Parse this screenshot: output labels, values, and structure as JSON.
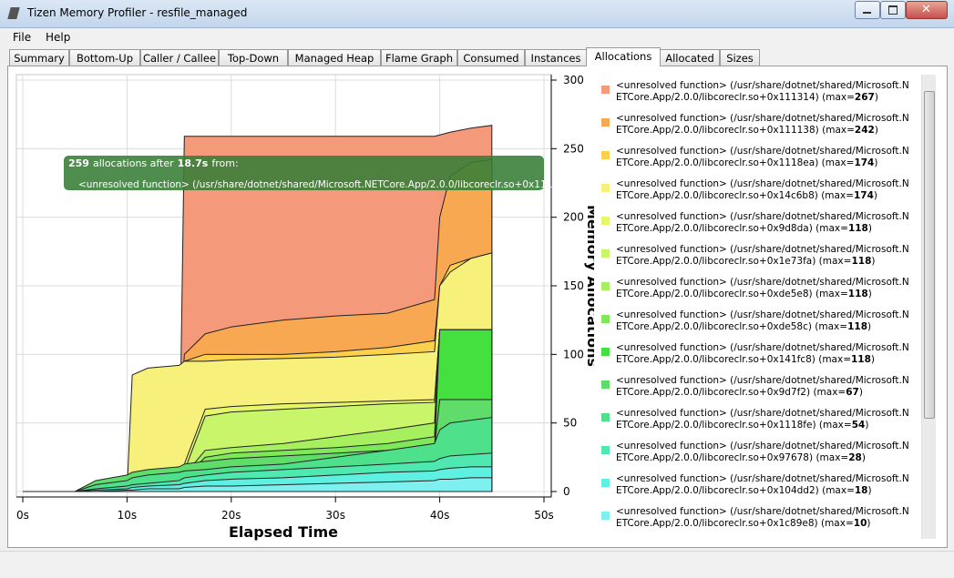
{
  "window": {
    "title": "Tizen Memory Profiler - resfile_managed"
  },
  "menu": [
    "File",
    "Help"
  ],
  "tabs": [
    "Summary",
    "Bottom-Up",
    "Caller / Callee",
    "Top-Down",
    "Managed Heap",
    "Flame Graph",
    "Consumed",
    "Instances",
    "Allocations",
    "Allocated",
    "Sizes"
  ],
  "active_tab": 8,
  "chart_data": {
    "type": "area",
    "x_label": "Elapsed Time",
    "y_label": "Memory Allocations",
    "x": [
      0,
      5,
      7,
      10,
      10.5,
      12,
      15,
      15.5,
      17.5,
      20,
      25,
      30,
      35,
      39.5,
      40,
      41,
      43,
      45
    ],
    "xlim": [
      0,
      50
    ],
    "xticks": [
      {
        "value": 0,
        "label": "0s"
      },
      {
        "value": 10,
        "label": "10s"
      },
      {
        "value": 20,
        "label": "20s"
      },
      {
        "value": 30,
        "label": "30s"
      },
      {
        "value": 40,
        "label": "40s"
      },
      {
        "value": 50,
        "label": "50s"
      }
    ],
    "ylim": [
      0,
      300
    ],
    "yticks": [
      0,
      50,
      100,
      150,
      200,
      250,
      300
    ],
    "grid": true,
    "max_prefix": "(max=",
    "max_suffix": ")",
    "series": [
      {
        "name": "<unresolved function> (/usr/share/dotnet/shared/Microsoft.NETCore.App/2.0.0/libcoreclr.so+0x111314)",
        "max": 267,
        "color": "#f4997a",
        "values": [
          0,
          0,
          0,
          0,
          0,
          0,
          0,
          259,
          259,
          259,
          259,
          259,
          259,
          259,
          260,
          262,
          265,
          267
        ]
      },
      {
        "name": "<unresolved function> (/usr/share/dotnet/shared/Microsoft.NETCore.App/2.0.0/libcoreclr.so+0x111138)",
        "max": 242,
        "color": "#f7a850",
        "values": [
          0,
          0,
          0,
          0,
          2,
          20,
          25,
          100,
          115,
          120,
          125,
          128,
          130,
          140,
          200,
          230,
          240,
          242
        ]
      },
      {
        "name": "<unresolved function> (/usr/share/dotnet/shared/Microsoft.NETCore.App/2.0.0/libcoreclr.so+0x1118ea)",
        "max": 174,
        "color": "#fcd04a",
        "values": [
          0,
          0,
          0,
          0,
          2,
          10,
          20,
          95,
          100,
          100,
          100,
          102,
          105,
          110,
          150,
          165,
          170,
          174
        ]
      },
      {
        "name": "<unresolved function> (/usr/share/dotnet/shared/Microsoft.NETCore.App/2.0.0/libcoreclr.so+0x14c6b8)",
        "max": 174,
        "color": "#f7f07a",
        "values": [
          0,
          0,
          0,
          0,
          85,
          90,
          92,
          95,
          95,
          96,
          97,
          98,
          100,
          102,
          150,
          160,
          170,
          174
        ]
      },
      {
        "name": "<unresolved function> (/usr/share/dotnet/shared/Microsoft.NETCore.App/2.0.0/libcoreclr.so+0x9d8da)",
        "max": 118,
        "color": "#e6f56a",
        "values": [
          0,
          0,
          0,
          0,
          0,
          5,
          10,
          20,
          60,
          62,
          64,
          65,
          66,
          67,
          118,
          118,
          118,
          118
        ]
      },
      {
        "name": "<unresolved function> (/usr/share/dotnet/shared/Microsoft.NETCore.App/2.0.0/libcoreclr.so+0x1e73fa)",
        "max": 118,
        "color": "#c8f56a",
        "values": [
          0,
          0,
          0,
          0,
          0,
          5,
          8,
          15,
          55,
          58,
          60,
          62,
          64,
          65,
          118,
          118,
          118,
          118
        ]
      },
      {
        "name": "<unresolved function> (/usr/share/dotnet/shared/Microsoft.NETCore.App/2.0.0/libcoreclr.so+0xde5e8)",
        "max": 118,
        "color": "#a6f060",
        "values": [
          0,
          0,
          0,
          0,
          0,
          3,
          5,
          12,
          30,
          32,
          35,
          40,
          45,
          50,
          118,
          118,
          118,
          118
        ]
      },
      {
        "name": "<unresolved function> (/usr/share/dotnet/shared/Microsoft.NETCore.App/2.0.0/libcoreclr.so+0xde58c)",
        "max": 118,
        "color": "#7ee85a",
        "values": [
          0,
          0,
          0,
          0,
          0,
          2,
          4,
          10,
          25,
          28,
          30,
          32,
          35,
          40,
          118,
          118,
          118,
          118
        ]
      },
      {
        "name": "<unresolved function> (/usr/share/dotnet/shared/Microsoft.NETCore.App/2.0.0/libcoreclr.so+0x141fc8)",
        "max": 118,
        "color": "#44e040",
        "values": [
          0,
          0,
          0,
          0,
          0,
          2,
          3,
          8,
          20,
          22,
          24,
          26,
          28,
          30,
          118,
          118,
          118,
          118
        ]
      },
      {
        "name": "<unresolved function> (/usr/share/dotnet/shared/Microsoft.NETCore.App/2.0.0/libcoreclr.so+0x9d7f2)",
        "max": 67,
        "color": "#5fdc6a",
        "values": [
          0,
          0,
          8,
          12,
          14,
          16,
          18,
          20,
          22,
          24,
          26,
          28,
          30,
          32,
          67,
          67,
          67,
          67
        ]
      },
      {
        "name": "<unresolved function> (/usr/share/dotnet/shared/Microsoft.NETCore.App/2.0.0/libcoreclr.so+0x1118fe)",
        "max": 54,
        "color": "#4ee08a",
        "values": [
          0,
          0,
          5,
          8,
          10,
          12,
          14,
          15,
          16,
          18,
          20,
          25,
          30,
          35,
          45,
          50,
          52,
          54
        ]
      },
      {
        "name": "<unresolved function> (/usr/share/dotnet/shared/Microsoft.NETCore.App/2.0.0/libcoreclr.so+0x97678)",
        "max": 28,
        "color": "#4ee8b0",
        "values": [
          0,
          0,
          2,
          4,
          5,
          6,
          8,
          10,
          12,
          14,
          16,
          18,
          20,
          22,
          24,
          26,
          27,
          28
        ]
      },
      {
        "name": "<unresolved function> (/usr/share/dotnet/shared/Microsoft.NETCore.App/2.0.0/libcoreclr.so+0x104dd2)",
        "max": 18,
        "color": "#5ef0e0",
        "values": [
          0,
          0,
          1,
          2,
          3,
          4,
          5,
          6,
          8,
          9,
          10,
          12,
          14,
          15,
          16,
          17,
          18,
          18
        ]
      },
      {
        "name": "<unresolved function> (/usr/share/dotnet/shared/Microsoft.NETCore.App/2.0.0/libcoreclr.so+0x1c89e8)",
        "max": 10,
        "color": "#7ff0f0",
        "values": [
          0,
          0,
          0,
          1,
          1,
          2,
          2,
          3,
          4,
          4,
          5,
          6,
          7,
          8,
          9,
          9,
          10,
          10
        ]
      }
    ],
    "tooltip": {
      "count": 259,
      "text": "allocations after",
      "time": "18.7s",
      "text2": "from:"
    }
  }
}
